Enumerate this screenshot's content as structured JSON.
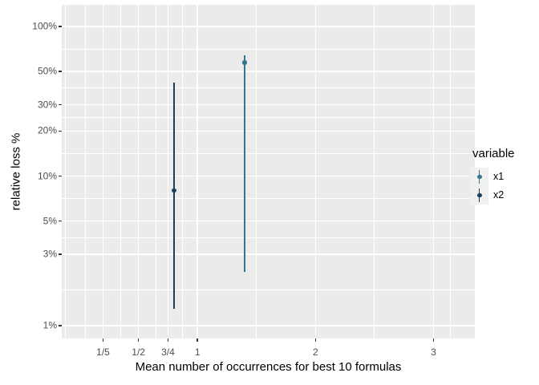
{
  "chart_data": {
    "type": "pointrange",
    "title": "",
    "xlabel": "Mean number of occurrences for best 10 formulas",
    "ylabel": "relative loss %",
    "x_axis": {
      "scale": "linear",
      "domain": [
        -0.15,
        3.35
      ],
      "ticks": [
        {
          "value": 0.2,
          "label": "1/5"
        },
        {
          "value": 0.5,
          "label": "1/2"
        },
        {
          "value": 0.75,
          "label": "3/4"
        },
        {
          "value": 1,
          "label": "1"
        },
        {
          "value": 2,
          "label": "2"
        },
        {
          "value": 3,
          "label": "3"
        }
      ],
      "minor_gridlines": [
        -0.12,
        0.05,
        0.35,
        0.65,
        0.875,
        1.5,
        2.5,
        3.14
      ]
    },
    "y_axis": {
      "scale": "log10",
      "unit": "%",
      "domain_log10": [
        -0.086,
        2.145
      ],
      "ticks": [
        {
          "value": 100,
          "label": "100%"
        },
        {
          "value": 50,
          "label": "50%"
        },
        {
          "value": 30,
          "label": "30%"
        },
        {
          "value": 20,
          "label": "20%"
        },
        {
          "value": 10,
          "label": "10%"
        },
        {
          "value": 5,
          "label": "5%"
        },
        {
          "value": 3,
          "label": "3%"
        },
        {
          "value": 1,
          "label": "1%"
        }
      ],
      "minor_gridlines": [
        70.7,
        38.7,
        24.5,
        14.1,
        7.07,
        3.87,
        1.73
      ]
    },
    "series": [
      {
        "name": "x1",
        "color": "#35758E",
        "x": 1.4,
        "y": 57.5,
        "ymin": 2.3,
        "ymax": 64.5
      },
      {
        "name": "x2",
        "color": "#16405C",
        "x": 0.8,
        "y": 8.0,
        "ymin": 1.3,
        "ymax": 42.0
      }
    ],
    "legend": {
      "title": "variable",
      "position": "right",
      "entries": [
        "x1",
        "x2"
      ]
    },
    "grid": "on"
  },
  "style": {
    "panel_bg": "#EBEBEB",
    "grid_color": "#FFFFFF",
    "tick_label_color": "#4D4D4D",
    "axis_title_color": "#000000",
    "legend_key_bg": "#F0F0F0",
    "tick_mark_color": "#333333"
  }
}
